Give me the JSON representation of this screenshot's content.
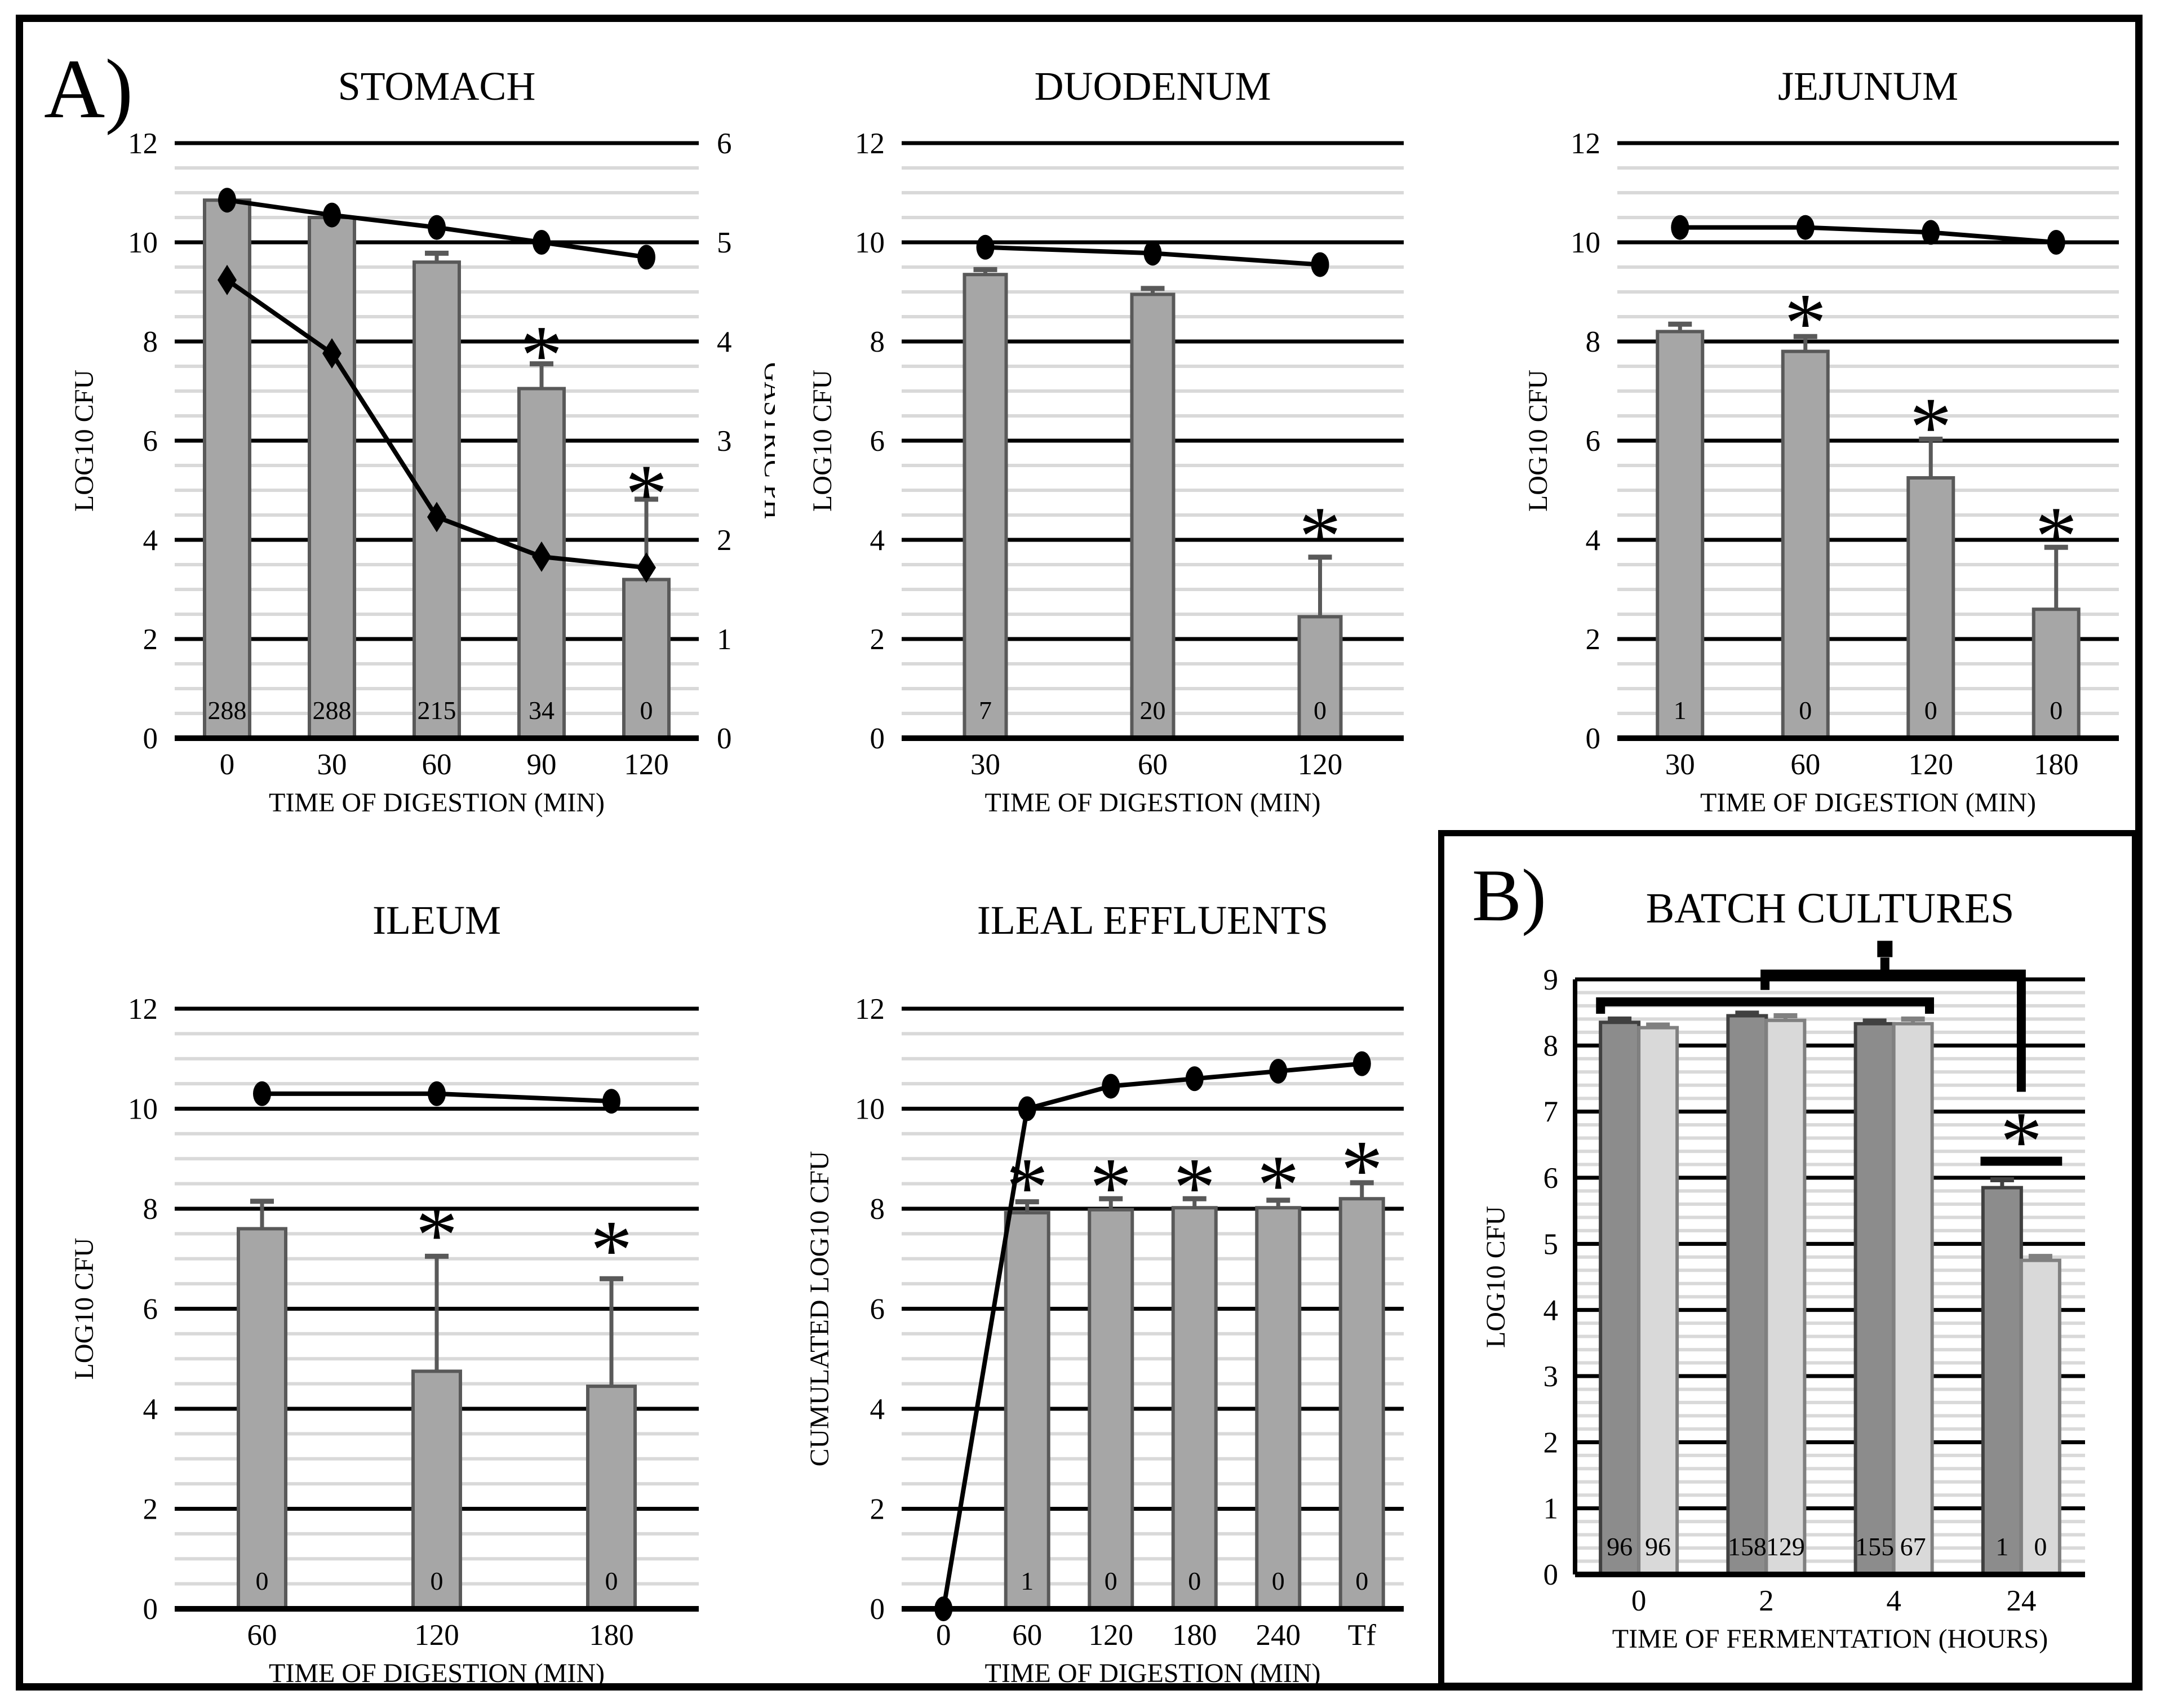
{
  "figure": {
    "panel_a_label": "A)",
    "panel_b_label": "B)"
  },
  "colors": {
    "bar_fill_panel_a": "#a6a6a6",
    "bar_stroke_panel_a": "#595959",
    "dark_bar_fill": "#8c8c8c",
    "dark_bar_stroke": "#404040",
    "light_bar_fill": "#d9d9d9",
    "light_bar_stroke": "#808080",
    "minor_grid": "#d9d9d9",
    "major_grid": "#000000",
    "error_bar": "#595959"
  },
  "chart_data": [
    {
      "id": "stomach",
      "type": "bar+line",
      "title": "STOMACH",
      "xlabel": "TIME OF DIGESTION (MIN)",
      "ylabel": "LOG10 CFU",
      "ylabel_right": "GASTRIC PH",
      "ylim": [
        0,
        12
      ],
      "major": 2,
      "minor": 0.5,
      "y2lim": [
        0,
        6
      ],
      "y2major": 1,
      "categories": [
        "0",
        "30",
        "60",
        "90",
        "120"
      ],
      "bar_series": [
        {
          "name": "cfu-bars",
          "fill": "#a6a6a6",
          "stroke": "#595959",
          "err_color": "#595959",
          "values": [
            10.85,
            10.5,
            9.6,
            7.05,
            3.2
          ],
          "errors": [
            0,
            0,
            0.18,
            0.5,
            1.62
          ],
          "base_labels": [
            "288",
            "288",
            "215",
            "34",
            "0"
          ]
        }
      ],
      "line_series": [
        {
          "name": "viable-count-line",
          "marker": "circle",
          "axis": "left",
          "values": [
            10.85,
            10.55,
            10.3,
            10.0,
            9.7
          ]
        },
        {
          "name": "gastric-ph-line",
          "marker": "diamond",
          "axis": "right",
          "values": [
            4.62,
            3.88,
            2.23,
            1.83,
            1.72
          ]
        }
      ],
      "asterisks": [
        {
          "cat": 3,
          "y": 7.95
        },
        {
          "cat": 4,
          "y": 5.15
        }
      ]
    },
    {
      "id": "duodenum",
      "type": "bar+line",
      "title": "DUODENUM",
      "xlabel": "TIME OF DIGESTION (MIN)",
      "ylabel": "LOG10 CFU",
      "ylim": [
        0,
        12
      ],
      "major": 2,
      "minor": 0.5,
      "categories": [
        "30",
        "60",
        "120"
      ],
      "bar_series": [
        {
          "name": "cfu-bars",
          "fill": "#a6a6a6",
          "stroke": "#595959",
          "err_color": "#595959",
          "values": [
            9.35,
            8.95,
            2.45
          ],
          "errors": [
            0.1,
            0.12,
            1.2
          ],
          "base_labels": [
            "7",
            "20",
            "0"
          ]
        }
      ],
      "line_series": [
        {
          "name": "viable-count-line",
          "marker": "circle",
          "axis": "left",
          "values": [
            9.9,
            9.78,
            9.55
          ]
        }
      ],
      "asterisks": [
        {
          "cat": 2,
          "y": 4.3
        }
      ]
    },
    {
      "id": "jejunum",
      "type": "bar+line",
      "title": "JEJUNUM",
      "xlabel": "TIME OF DIGESTION (MIN)",
      "ylabel": "LOG10 CFU",
      "ylim": [
        0,
        12
      ],
      "major": 2,
      "minor": 0.5,
      "categories": [
        "30",
        "60",
        "120",
        "180"
      ],
      "bar_series": [
        {
          "name": "cfu-bars",
          "fill": "#a6a6a6",
          "stroke": "#595959",
          "err_color": "#595959",
          "values": [
            8.2,
            7.8,
            5.25,
            2.6
          ],
          "errors": [
            0.15,
            0.3,
            0.78,
            1.25
          ],
          "base_labels": [
            "1",
            "0",
            "0",
            "0"
          ]
        }
      ],
      "line_series": [
        {
          "name": "viable-count-line",
          "marker": "circle",
          "axis": "left",
          "values": [
            10.3,
            10.3,
            10.2,
            10.0
          ]
        }
      ],
      "asterisks": [
        {
          "cat": 1,
          "y": 8.6
        },
        {
          "cat": 2,
          "y": 6.5
        },
        {
          "cat": 3,
          "y": 4.3
        }
      ]
    },
    {
      "id": "ileum",
      "type": "bar+line",
      "title": "ILEUM",
      "xlabel": "TIME OF DIGESTION (MIN)",
      "ylabel": "LOG10 CFU",
      "ylim": [
        0,
        12
      ],
      "major": 2,
      "minor": 0.5,
      "categories": [
        "60",
        "120",
        "180"
      ],
      "bar_series": [
        {
          "name": "cfu-bars",
          "fill": "#a6a6a6",
          "stroke": "#595959",
          "err_color": "#595959",
          "values": [
            7.6,
            4.75,
            4.45
          ],
          "errors": [
            0.55,
            2.3,
            2.15
          ],
          "base_labels": [
            "0",
            "0",
            "0"
          ]
        }
      ],
      "line_series": [
        {
          "name": "viable-count-line",
          "marker": "circle",
          "axis": "left",
          "values": [
            10.3,
            10.3,
            10.15
          ]
        }
      ],
      "asterisks": [
        {
          "cat": 1,
          "y": 7.7
        },
        {
          "cat": 2,
          "y": 7.4
        }
      ]
    },
    {
      "id": "ileal-effluents",
      "type": "bar+line",
      "title": "ILEAL EFFLUENTS",
      "xlabel": "TIME OF DIGESTION (MIN)",
      "ylabel": "CUMULATED LOG10 CFU",
      "ylim": [
        0,
        12
      ],
      "major": 2,
      "minor": 0.5,
      "categories": [
        "0",
        "60",
        "120",
        "180",
        "240",
        "Tf"
      ],
      "bar_series": [
        {
          "name": "cumulated-cfu-bars",
          "fill": "#a6a6a6",
          "stroke": "#595959",
          "err_color": "#595959",
          "values": [
            null,
            7.92,
            7.98,
            8.02,
            8.02,
            8.2
          ],
          "errors": [
            null,
            0.22,
            0.22,
            0.18,
            0.15,
            0.32
          ],
          "base_labels": [
            null,
            "1",
            "0",
            "0",
            "0",
            "0"
          ]
        }
      ],
      "line_series": [
        {
          "name": "cumulated-count-line",
          "marker": "circle",
          "axis": "left",
          "values": [
            0,
            10.0,
            10.45,
            10.6,
            10.75,
            10.9
          ]
        }
      ],
      "asterisks": [
        {
          "cat": 1,
          "y": 8.65
        },
        {
          "cat": 2,
          "y": 8.65
        },
        {
          "cat": 3,
          "y": 8.65
        },
        {
          "cat": 4,
          "y": 8.7
        },
        {
          "cat": 5,
          "y": 9.0
        }
      ]
    },
    {
      "id": "batch-cultures",
      "type": "grouped-bar",
      "title": "BATCH CULTURES",
      "xlabel": "TIME OF FERMENTATION (HOURS)",
      "ylabel": "LOG10 CFU",
      "ylim": [
        0,
        9
      ],
      "major": 1,
      "minor": 0.2,
      "categories": [
        "0",
        "2",
        "4",
        "24"
      ],
      "bar_series": [
        {
          "name": "dark-gray-bars",
          "fill": "#8c8c8c",
          "stroke": "#404040",
          "err_color": "#404040",
          "values": [
            8.35,
            8.45,
            8.33,
            5.85
          ],
          "errors": [
            0.05,
            0.04,
            0.04,
            0.12
          ],
          "base_labels": [
            "96",
            "158",
            "155",
            "1"
          ]
        },
        {
          "name": "light-gray-bars",
          "fill": "#d9d9d9",
          "stroke": "#808080",
          "err_color": "#808080",
          "values": [
            8.27,
            8.38,
            8.33,
            4.75
          ],
          "errors": [
            0.04,
            0.07,
            0.07,
            0.06
          ],
          "base_labels": [
            "96",
            "129",
            "67",
            "0"
          ]
        }
      ],
      "line_series": [],
      "asterisks": [],
      "annotations": {
        "left_spine": true,
        "brackets": [
          {
            "name": "significance-bracket-lower",
            "points": [
              [
                0.2,
                8.48
              ],
              [
                0.2,
                8.66
              ],
              [
                2.78,
                8.66
              ],
              [
                2.78,
                8.48
              ]
            ]
          },
          {
            "name": "significance-bracket-upper",
            "points": [
              [
                1.49,
                8.84
              ],
              [
                1.49,
                9.08
              ],
              [
                3.5,
                9.08
              ],
              [
                3.5,
                7.3
              ]
            ]
          },
          {
            "name": "square-stub",
            "points": [
              [
                2.43,
                9.08
              ],
              [
                2.43,
                9.33
              ]
            ]
          }
        ],
        "square_marker": {
          "slot": 2.43,
          "y": 9.46,
          "w": 27,
          "h": 29
        },
        "sig_line": {
          "x1_slot": 3.18,
          "x2_slot": 3.82,
          "y": 6.25
        },
        "star": {
          "slot": 3.5,
          "y": 6.72,
          "symbol": "*"
        }
      }
    }
  ]
}
